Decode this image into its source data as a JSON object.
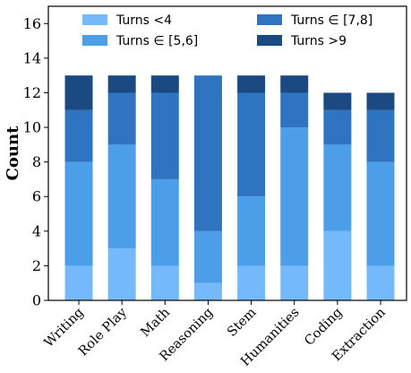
{
  "chart_data": {
    "type": "bar",
    "stacked": true,
    "categories": [
      "Writing",
      "Role Play",
      "Math",
      "Reasoning",
      "Stem",
      "Humanities",
      "Coding",
      "Extraction"
    ],
    "series": [
      {
        "name": "Turns <4",
        "color": "#74b9fb",
        "values": [
          2,
          3,
          2,
          1,
          2,
          2,
          4,
          2
        ]
      },
      {
        "name": "Turns ∈ [5,6]",
        "color": "#4c9ee9",
        "values": [
          6,
          6,
          5,
          3,
          4,
          8,
          5,
          6
        ]
      },
      {
        "name": "Turns ∈ [7,8]",
        "color": "#2f74c0",
        "values": [
          3,
          3,
          5,
          9,
          6,
          2,
          2,
          3
        ]
      },
      {
        "name": "Turns >9",
        "color": "#1b4a82",
        "values": [
          2,
          1,
          1,
          0,
          1,
          1,
          1,
          1
        ]
      }
    ],
    "title": "",
    "xlabel": "",
    "ylabel": "Count",
    "ylim": [
      0,
      17
    ],
    "yticks": [
      0,
      2,
      4,
      6,
      8,
      10,
      12,
      14,
      16
    ],
    "grid": false,
    "legend": {
      "placement": "top",
      "columns": 2
    }
  }
}
